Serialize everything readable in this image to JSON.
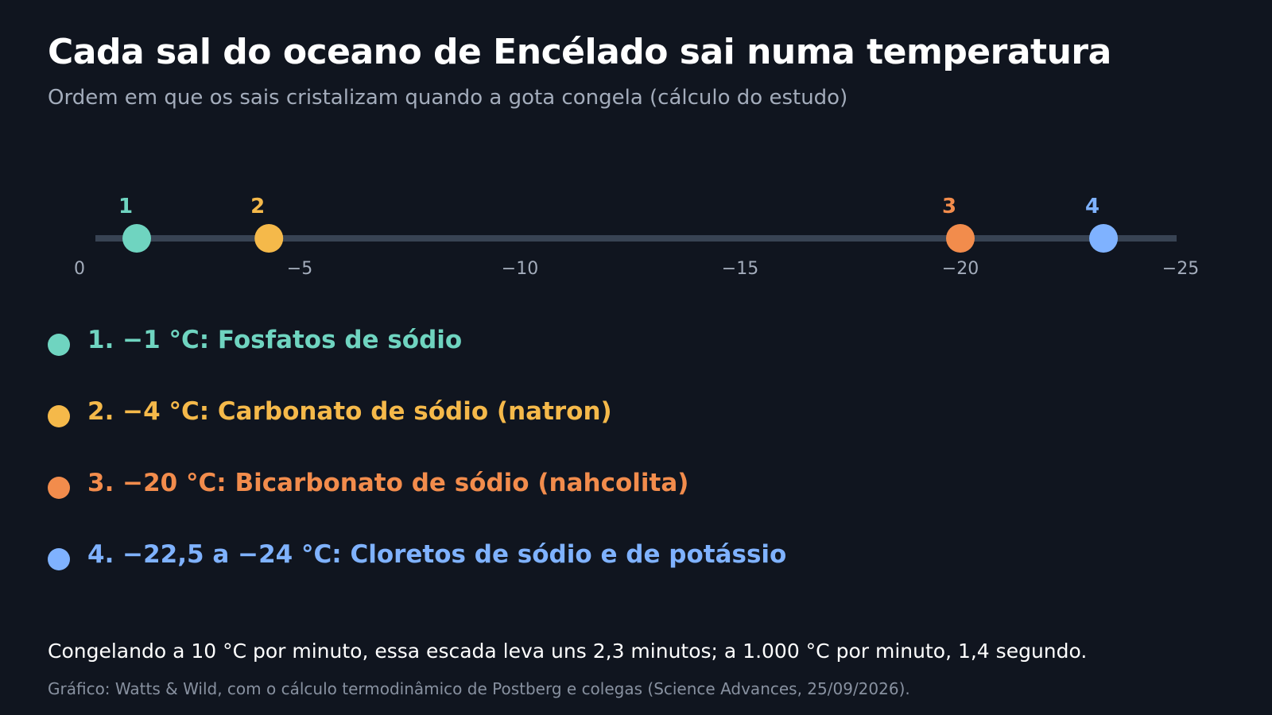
{
  "header": {
    "title": "Cada sal do oceano de Encélado sai numa temperatura",
    "subtitle": "Ordem em que os sais cristalizam quando a gota congela (cálculo do estudo)"
  },
  "chart_data": {
    "type": "scatter",
    "xlim": [
      0,
      -25
    ],
    "ticks": [
      {
        "value": 0,
        "label": "0"
      },
      {
        "value": -5,
        "label": "−5"
      },
      {
        "value": -10,
        "label": "−10"
      },
      {
        "value": -15,
        "label": "−15"
      },
      {
        "value": -20,
        "label": "−20"
      },
      {
        "value": -25,
        "label": "−25"
      }
    ],
    "points": [
      {
        "label": "1",
        "x": -1.3,
        "color": "#6fd4c0"
      },
      {
        "label": "2",
        "x": -4.3,
        "color": "#f5b94a"
      },
      {
        "label": "3",
        "x": -20,
        "color": "#f28c4c"
      },
      {
        "label": "4",
        "x": -23.25,
        "color": "#7fb2ff"
      }
    ],
    "track_color": "#384353",
    "tick_color": "#a3acbb"
  },
  "legend": {
    "items": [
      {
        "text": "1. −1 °C: Fosfatos de sódio",
        "color": "#6fd4c0"
      },
      {
        "text": "2. −4 °C: Carbonato de sódio (natron)",
        "color": "#f5b94a"
      },
      {
        "text": "3. −20 °C: Bicarbonato de sódio (nahcolita)",
        "color": "#f28c4c"
      },
      {
        "text": "4. −22,5 a −24 °C: Cloretos de sódio e de potássio",
        "color": "#7fb2ff"
      }
    ]
  },
  "footer": {
    "note": "Congelando a 10 °C por minuto, essa escada leva uns 2,3 minutos; a 1.000 °C por minuto, 1,4 segundo.",
    "source": "Gráfico: Watts & Wild, com o cálculo termodinâmico de Postberg e colegas (Science Advances, 25/09/2026)."
  }
}
